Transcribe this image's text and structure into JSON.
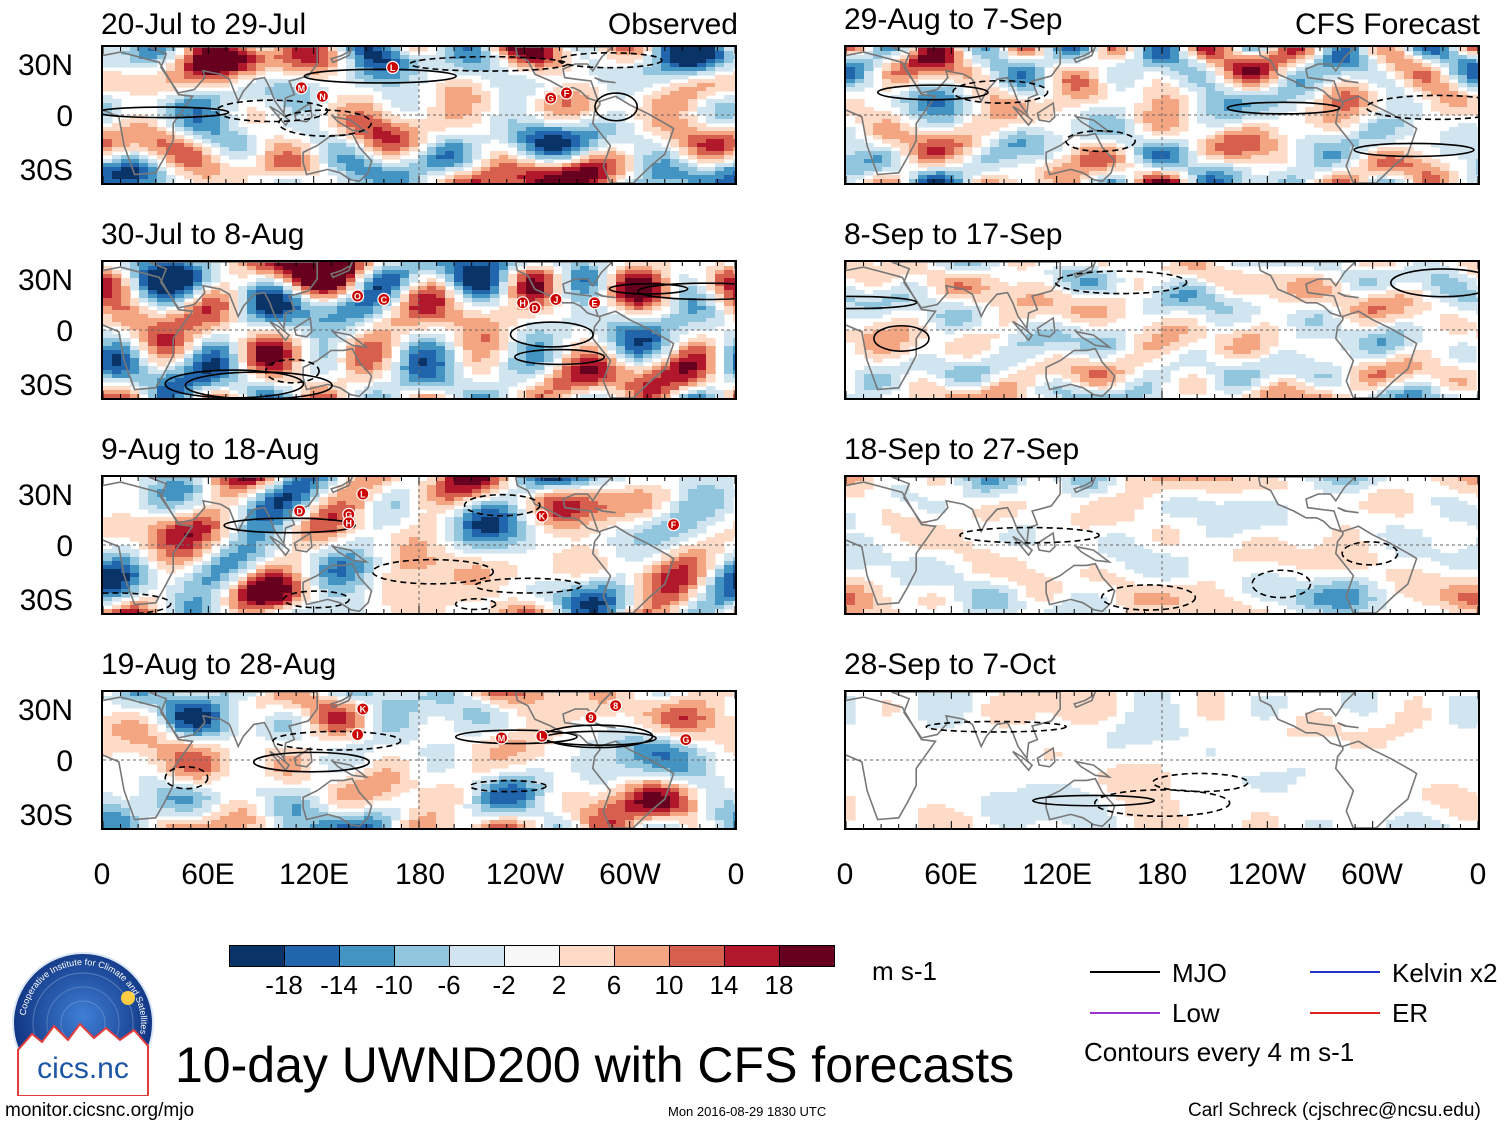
{
  "panels": [
    {
      "title": "20-Jul to 29-Jul",
      "label": "Observed",
      "kind": "obs",
      "seed": 11,
      "markers": [
        {
          "t": "L",
          "lon": 165,
          "lat": 28
        },
        {
          "t": "M",
          "lon": 113,
          "lat": 16
        },
        {
          "t": "N",
          "lon": 125,
          "lat": 11
        },
        {
          "t": "G",
          "lon": -105,
          "lat": 10
        },
        {
          "t": "F",
          "lon": -96,
          "lat": 13
        }
      ]
    },
    {
      "title": "30-Jul to 8-Aug",
      "label": "",
      "kind": "obs",
      "seed": 23,
      "markers": [
        {
          "t": "O",
          "lon": 145,
          "lat": 20
        },
        {
          "t": "C",
          "lon": 160,
          "lat": 18
        },
        {
          "t": "H",
          "lon": -121,
          "lat": 16
        },
        {
          "t": "D",
          "lon": -114,
          "lat": 13
        },
        {
          "t": "J",
          "lon": -102,
          "lat": 18
        },
        {
          "t": "E",
          "lon": -80,
          "lat": 16
        }
      ]
    },
    {
      "title": "9-Aug to 18-Aug",
      "label": "",
      "kind": "obs",
      "seed": 37,
      "markers": [
        {
          "t": "D",
          "lon": 112,
          "lat": 20
        },
        {
          "t": "L",
          "lon": 148,
          "lat": 30
        },
        {
          "t": "G",
          "lon": 140,
          "lat": 18
        },
        {
          "t": "H",
          "lon": 140,
          "lat": 13
        },
        {
          "t": "K",
          "lon": -110,
          "lat": 17
        },
        {
          "t": "F",
          "lon": -35,
          "lat": 12
        }
      ]
    },
    {
      "title": "19-Aug to 28-Aug",
      "label": "",
      "kind": "obs",
      "seed": 49,
      "markers": [
        {
          "t": "K",
          "lon": 148,
          "lat": 30
        },
        {
          "t": "I",
          "lon": 145,
          "lat": 15
        },
        {
          "t": "M",
          "lon": -133,
          "lat": 13
        },
        {
          "t": "L",
          "lon": -110,
          "lat": 14
        },
        {
          "t": "9",
          "lon": -82,
          "lat": 25
        },
        {
          "t": "8",
          "lon": -68,
          "lat": 32
        },
        {
          "t": "G",
          "lon": -28,
          "lat": 12
        }
      ]
    },
    {
      "title": "29-Aug to 7-Sep",
      "label": "CFS Forecast",
      "kind": "fc1",
      "seed": 61,
      "markers": []
    },
    {
      "title": "8-Sep to 17-Sep",
      "label": "",
      "kind": "fc2",
      "seed": 73,
      "markers": []
    },
    {
      "title": "18-Sep to 27-Sep",
      "label": "",
      "kind": "fc3",
      "seed": 89,
      "markers": []
    },
    {
      "title": "28-Sep to 7-Oct",
      "label": "",
      "kind": "fc4",
      "seed": 97,
      "markers": []
    }
  ],
  "lat_labels": [
    "30N",
    "0",
    "30S"
  ],
  "lon_labels": [
    "0",
    "60E",
    "120E",
    "180",
    "120W",
    "60W",
    "0"
  ],
  "colorbar": {
    "colors": [
      "#0a3467",
      "#2166ac",
      "#4393c3",
      "#92c5de",
      "#d1e5f0",
      "#f7f7f7",
      "#fddbc7",
      "#f4a582",
      "#d6604d",
      "#b2182b",
      "#67001f"
    ],
    "ticks": [
      "-18",
      "-14",
      "-10",
      "-6",
      "-2",
      "2",
      "6",
      "10",
      "14",
      "18"
    ],
    "units": "m s-1"
  },
  "legend": [
    {
      "name": "MJO",
      "color": "#000000"
    },
    {
      "name": "Kelvin x2",
      "color": "#2233cc"
    },
    {
      "name": "Low",
      "color": "#9933cc"
    },
    {
      "name": "ER",
      "color": "#dd2222"
    }
  ],
  "contours_note": "Contours every 4 m s-1",
  "main_title": "10-day UWND200 with CFS forecasts",
  "logo": {
    "text": "cics.nc",
    "ring_text": "Cooperative Institute for Climate and Satellites"
  },
  "footer": {
    "url": "monitor.cicsnc.org/mjo",
    "timestamp": "Mon 2016-08-29 1830 UTC",
    "author": "Carl Schreck (cjschrec@ncsu.edu)"
  }
}
